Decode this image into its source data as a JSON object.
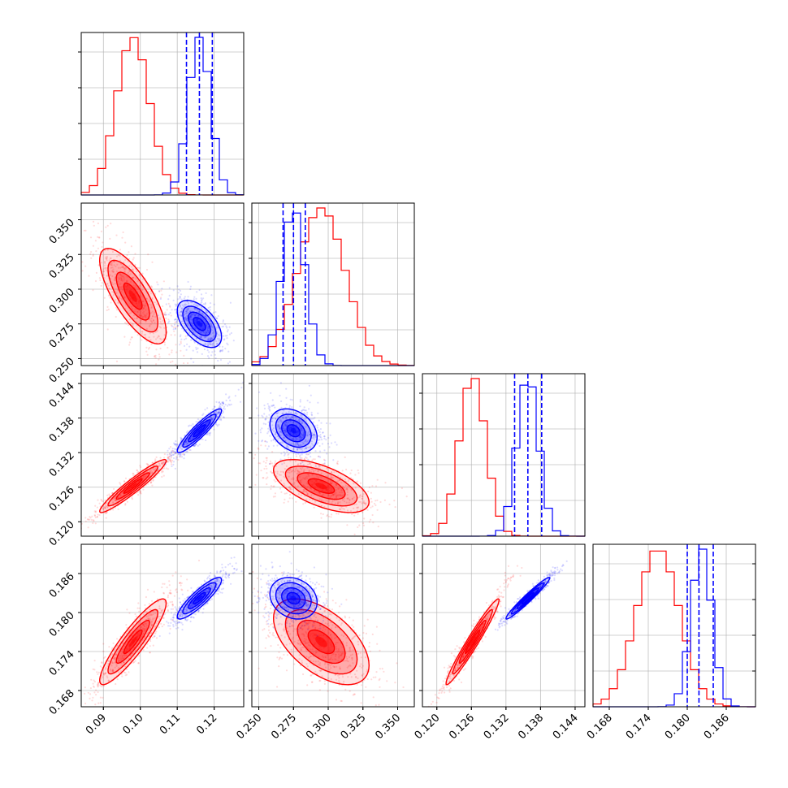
{
  "colors": {
    "red": "#ff0000",
    "blue": "#0000ff",
    "grid": "#b0b0b0",
    "frame": "#000000"
  },
  "chart_data": {
    "type": "corner-plot",
    "grid": true,
    "parameters": [
      {
        "key": "p1",
        "range": [
          0.084,
          0.128
        ],
        "ticks": [
          0.09,
          0.1,
          0.11,
          0.12
        ],
        "tick_labels": [
          "0.09",
          "0.10",
          "0.11",
          "0.12"
        ]
      },
      {
        "key": "p2",
        "range": [
          0.245,
          0.362
        ],
        "ticks": [
          0.25,
          0.275,
          0.3,
          0.325,
          0.35
        ],
        "tick_labels": [
          "0.250",
          "0.275",
          "0.300",
          "0.325",
          "0.350"
        ]
      },
      {
        "key": "p3",
        "range": [
          0.1175,
          0.1457
        ],
        "ticks": [
          0.12,
          0.126,
          0.132,
          0.138,
          0.144
        ],
        "tick_labels": [
          "0.120",
          "0.126",
          "0.132",
          "0.138",
          "0.144"
        ]
      },
      {
        "key": "p4",
        "range": [
          0.1655,
          0.1905
        ],
        "ticks": [
          0.168,
          0.174,
          0.18,
          0.186
        ],
        "tick_labels": [
          "0.168",
          "0.174",
          "0.180",
          "0.186"
        ]
      }
    ],
    "series": [
      {
        "color": "red",
        "mean": [
          0.098,
          0.295,
          0.1262,
          0.1755
        ],
        "sd": [
          0.0045,
          0.0172,
          0.0023,
          0.0033
        ],
        "corr": [
          [
            1,
            -0.75,
            0.95,
            0.9
          ],
          [
            -0.75,
            1,
            -0.6,
            -0.55
          ],
          [
            0.95,
            -0.6,
            1,
            0.97
          ],
          [
            0.9,
            -0.55,
            0.97,
            1
          ]
        ]
      },
      {
        "color": "blue",
        "mean": [
          0.116,
          0.275,
          0.1358,
          0.1822
        ],
        "sd": [
          0.003,
          0.0085,
          0.0019,
          0.0016
        ],
        "quantile_lines": [
          [
            0.1125,
            0.116,
            0.1195
          ],
          [
            0.2675,
            0.275,
            0.2835
          ],
          [
            0.1335,
            0.1358,
            0.1382
          ],
          [
            0.18,
            0.1818,
            0.184
          ]
        ],
        "corr": [
          [
            1,
            -0.55,
            0.92,
            0.88
          ],
          [
            -0.55,
            1,
            -0.3,
            -0.2
          ],
          [
            0.92,
            -0.3,
            1,
            0.97
          ],
          [
            0.88,
            -0.2,
            0.97,
            1
          ]
        ]
      }
    ]
  }
}
